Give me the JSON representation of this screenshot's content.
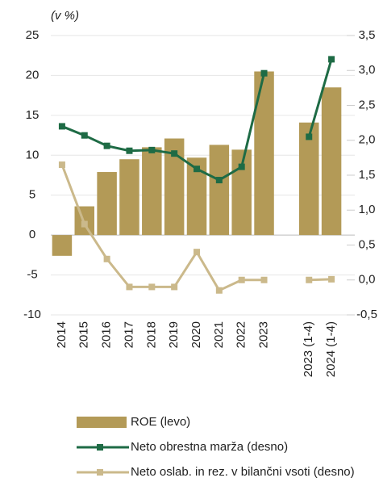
{
  "chart_data": {
    "type": "bar",
    "subtitle": "(v %)",
    "categories": [
      "2014",
      "2015",
      "2016",
      "2017",
      "2018",
      "2019",
      "2020",
      "2021",
      "2022",
      "2023",
      null,
      "2023 (1-4)",
      "2024 (1-4)"
    ],
    "series": [
      {
        "name": "ROE (levo)",
        "type": "bar",
        "color": "#b39a57",
        "values": [
          -2.6,
          3.6,
          7.9,
          9.5,
          11.0,
          12.1,
          9.7,
          11.3,
          10.7,
          20.5,
          null,
          14.1,
          18.5
        ]
      },
      {
        "name": "Neto obrestna marža (desno)",
        "type": "line",
        "axis": "y2",
        "color": "#1e6b45",
        "values": [
          2.2,
          2.07,
          1.92,
          1.85,
          1.86,
          1.81,
          1.59,
          1.43,
          1.62,
          2.96,
          null,
          2.05,
          3.16
        ]
      },
      {
        "name": "Neto oslab. in rez. v bilančni vsoti (desno)",
        "type": "line",
        "axis": "y2",
        "color": "#cbb98b",
        "values": [
          1.65,
          0.8,
          0.3,
          -0.1,
          -0.1,
          -0.1,
          0.4,
          -0.15,
          0.0,
          0.0,
          null,
          0.0,
          0.01
        ]
      }
    ],
    "ylim": [
      -10,
      25
    ],
    "yticks": [
      -10,
      -5,
      0,
      5,
      10,
      15,
      20,
      25
    ],
    "y2lim": [
      -0.5,
      3.5
    ],
    "y2ticks": [
      {
        "value": -0.5,
        "label": "-0,5"
      },
      {
        "value": 0,
        "label": "0,0"
      },
      {
        "value": 0.5,
        "label": "0,5"
      },
      {
        "value": 1,
        "label": "1,0"
      },
      {
        "value": 1.5,
        "label": "1,5"
      },
      {
        "value": 2,
        "label": "2,0"
      },
      {
        "value": 2.5,
        "label": "2,5"
      },
      {
        "value": 3,
        "label": "3,0"
      },
      {
        "value": 3.5,
        "label": "3,5"
      }
    ],
    "grid": true,
    "legend": "bottom"
  }
}
